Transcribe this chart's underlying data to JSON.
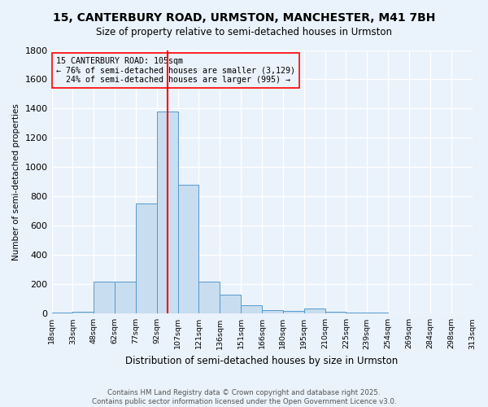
{
  "title": "15, CANTERBURY ROAD, URMSTON, MANCHESTER, M41 7BH",
  "subtitle": "Size of property relative to semi-detached houses in Urmston",
  "xlabel": "Distribution of semi-detached houses by size in Urmston",
  "ylabel": "Number of semi-detached properties",
  "bin_labels": [
    "18sqm",
    "33sqm",
    "48sqm",
    "62sqm",
    "77sqm",
    "92sqm",
    "107sqm",
    "121sqm",
    "136sqm",
    "151sqm",
    "166sqm",
    "180sqm",
    "195sqm",
    "210sqm",
    "225sqm",
    "239sqm",
    "254sqm",
    "269sqm",
    "284sqm",
    "298sqm",
    "313sqm"
  ],
  "bar_heights": [
    5,
    15,
    220,
    220,
    750,
    1380,
    880,
    220,
    130,
    60,
    25,
    20,
    35,
    15,
    10,
    5,
    0,
    0,
    0,
    0
  ],
  "bar_color": "#c8ddef",
  "bar_edge_color": "#5599cc",
  "annotation_text_line1": "15 CANTERBURY ROAD: 105sqm",
  "annotation_text_line2": "← 76% of semi-detached houses are smaller (3,129)",
  "annotation_text_line3": "  24% of semi-detached houses are larger (995) →",
  "footer_line1": "Contains HM Land Registry data © Crown copyright and database right 2025.",
  "footer_line2": "Contains public sector information licensed under the Open Government Licence v3.0.",
  "ylim": [
    0,
    1800
  ],
  "yticks": [
    0,
    200,
    400,
    600,
    800,
    1000,
    1200,
    1400,
    1600,
    1800
  ],
  "bg_color": "#eaf2fb",
  "grid_color": "#ffffff",
  "red_line_x": 5.5
}
